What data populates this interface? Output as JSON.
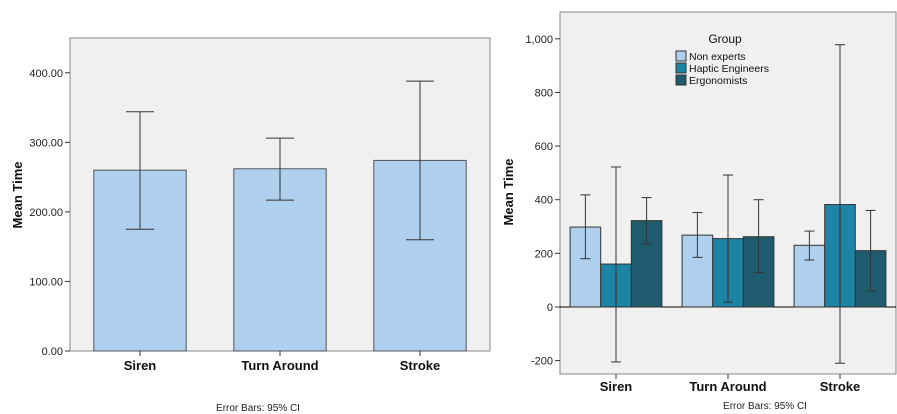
{
  "chart_data": [
    {
      "type": "bar",
      "ylabel": "Mean Time",
      "footnote": "Error Bars: 95% CI",
      "ylim": [
        0,
        450
      ],
      "yticks": [
        0,
        100,
        200,
        300,
        400
      ],
      "ytick_labels": [
        "0.00",
        "100.00",
        "200.00",
        "300.00",
        "400.00"
      ],
      "categories": [
        "Siren",
        "Turn Around",
        "Stroke"
      ],
      "values": [
        260,
        262,
        274
      ],
      "error_low": [
        175,
        217,
        160
      ],
      "error_high": [
        344,
        306,
        388
      ],
      "bar_color": "#aecfee",
      "grid": false
    },
    {
      "type": "bar",
      "ylabel": "Mean Time",
      "footnote": "Error Bars: 95% CI",
      "ylim": [
        -250,
        1100
      ],
      "yticks": [
        -200,
        0,
        200,
        400,
        600,
        800,
        1000
      ],
      "ytick_labels": [
        "-200",
        "0",
        "200",
        "400",
        "600",
        "800",
        "1,000"
      ],
      "categories": [
        "Siren",
        "Turn Around",
        "Stroke"
      ],
      "legend": {
        "title": "Group",
        "placement": "top-center"
      },
      "series": [
        {
          "name": "Non experts",
          "color": "#aecfee",
          "values": [
            298,
            268,
            230
          ],
          "error_low": [
            180,
            185,
            175
          ],
          "error_high": [
            418,
            352,
            283
          ]
        },
        {
          "name": "Haptic Engineers",
          "color": "#1e84a7",
          "values": [
            160,
            255,
            382
          ],
          "error_low": [
            -205,
            18,
            -210
          ],
          "error_high": [
            522,
            492,
            978
          ]
        },
        {
          "name": "Ergonomists",
          "color": "#1f5b6f",
          "values": [
            322,
            262,
            210
          ],
          "error_low": [
            235,
            128,
            60
          ],
          "error_high": [
            408,
            400,
            360
          ]
        }
      ],
      "grid": false
    }
  ]
}
